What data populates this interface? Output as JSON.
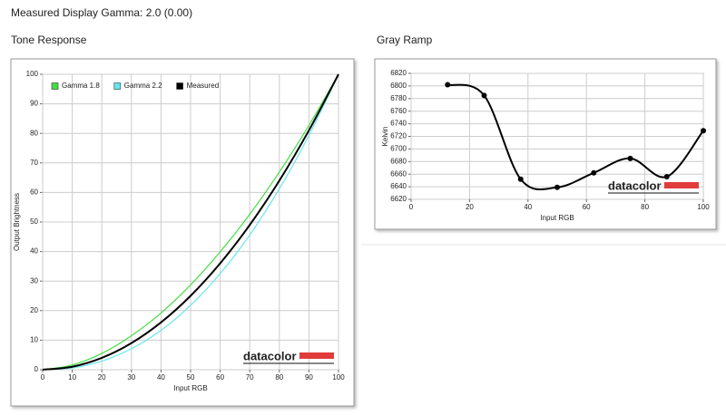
{
  "header": "Measured Display Gamma: 2.0 (0.00)",
  "chart_data": [
    {
      "type": "line",
      "title": "Tone Response",
      "x_label": "Input RGB",
      "y_label": "Output Brightness",
      "x": [
        0,
        10,
        20,
        30,
        40,
        50,
        60,
        70,
        80,
        90,
        100
      ],
      "series": [
        {
          "name": "Gamma 1.8",
          "color": "#44dd44",
          "values": [
            0,
            1.6,
            5.5,
            11.5,
            19.2,
            28.7,
            39.9,
            52.6,
            66.9,
            82.7,
            100
          ]
        },
        {
          "name": "Gamma 2.2",
          "color": "#66e6ee",
          "values": [
            0,
            0.6,
            2.9,
            7.1,
            13.3,
            21.8,
            32.5,
            45.6,
            61.2,
            79.3,
            100
          ]
        },
        {
          "name": "Measured",
          "color": "#000000",
          "values": [
            0,
            1,
            4,
            9,
            16,
            25,
            36,
            49,
            64,
            81,
            100
          ]
        }
      ],
      "xlim": [
        0,
        100
      ],
      "xticks": [
        0,
        10,
        20,
        30,
        40,
        50,
        60,
        70,
        80,
        90,
        100
      ],
      "ylim": [
        0,
        100
      ],
      "yticks": [
        0,
        10,
        20,
        30,
        40,
        50,
        60,
        70,
        80,
        90,
        100
      ],
      "grid": true,
      "legend": "upper left",
      "watermark": "datacolor"
    },
    {
      "type": "line",
      "title": "Gray Ramp",
      "x_label": "Input RGB",
      "y_label": "Kelvin",
      "x": [
        12.5,
        25,
        37.5,
        50,
        62.5,
        75,
        87.5,
        100
      ],
      "series": [
        {
          "color": "#000000",
          "values": [
            6802,
            6785,
            6652,
            6639,
            6662,
            6685,
            6656,
            6729
          ]
        }
      ],
      "xlim": [
        0,
        100
      ],
      "xticks": [
        0,
        20,
        40,
        60,
        80,
        100
      ],
      "ylim": [
        6620,
        6820
      ],
      "yticks": [
        6620,
        6640,
        6660,
        6680,
        6700,
        6720,
        6740,
        6760,
        6780,
        6800,
        6820
      ],
      "grid": true,
      "markers": true,
      "watermark": "datacolor"
    }
  ]
}
